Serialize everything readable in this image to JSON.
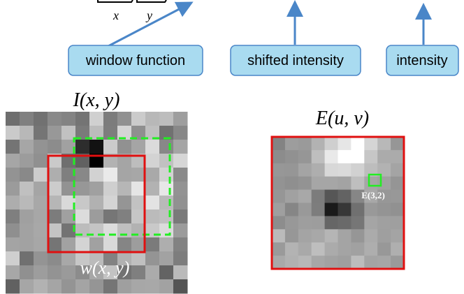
{
  "formula": {
    "sum_x": "x",
    "sum_y": "y"
  },
  "callouts": [
    {
      "label": "window function"
    },
    {
      "label": "shifted intensity"
    },
    {
      "label": "intensity"
    }
  ],
  "images": {
    "intensity": {
      "title": "I(x, y)",
      "window_label": "w(x, y)"
    },
    "error": {
      "title": "E(u, v)",
      "point_label": "E(3,2)"
    }
  }
}
